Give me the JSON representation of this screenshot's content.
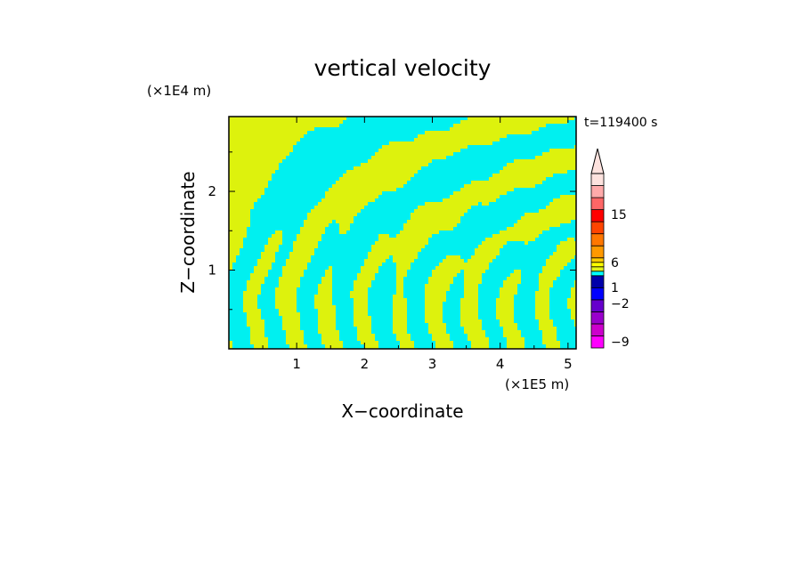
{
  "chart_data": {
    "type": "heatmap",
    "title": "vertical velocity",
    "xlabel": "X−coordinate",
    "ylabel": "Z−coordinate",
    "x_unit": "(×1E5 m)",
    "y_unit": "(×1E4 m)",
    "time_label": "t=119400 s",
    "xlim": [
      0,
      5.12
    ],
    "ylim": [
      0,
      2.95
    ],
    "x_ticks": [
      {
        "value": 1,
        "label": "1"
      },
      {
        "value": 2,
        "label": "2"
      },
      {
        "value": 3,
        "label": "3"
      },
      {
        "value": 4,
        "label": "4"
      },
      {
        "value": 5,
        "label": "5"
      }
    ],
    "y_ticks": [
      {
        "value": 1,
        "label": "1"
      },
      {
        "value": 2,
        "label": "2"
      }
    ],
    "field_colors": {
      "positive": "#ddf20d",
      "negative": "#00f0f0"
    },
    "colorbar": {
      "extend": "max",
      "extend_color": "#fde2de",
      "levels": [
        {
          "color": "#ff00ff"
        },
        {
          "color": "#cc00cc"
        },
        {
          "color": "#9900cc"
        },
        {
          "color": "#6600cc"
        },
        {
          "color": "#0000ff"
        },
        {
          "color": "#0000aa"
        },
        {
          "color": "#00ffff"
        },
        {
          "color": "#e1f31a"
        },
        {
          "color": "#ffff00"
        },
        {
          "color": "#ffcc00"
        },
        {
          "color": "#ff9900"
        },
        {
          "color": "#ff7700"
        },
        {
          "color": "#ff4400"
        },
        {
          "color": "#ff0000"
        },
        {
          "color": "#ff6666"
        },
        {
          "color": "#ffaaaa"
        },
        {
          "color": "#fde2de"
        }
      ],
      "labels": [
        "15",
        "6",
        "1",
        "−2",
        "−9"
      ]
    }
  }
}
